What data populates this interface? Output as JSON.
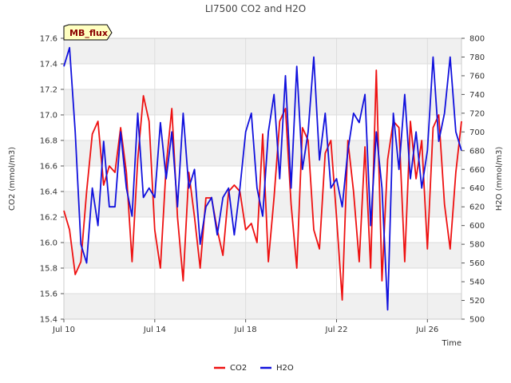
{
  "chart_data": {
    "type": "line",
    "title": "LI7500 CO2 and H2O",
    "xlabel": "Time",
    "ylabel_left": "CO2 (mmol/m3)",
    "ylabel_right": "H2O (mmol/m3)",
    "badge": "MB_flux",
    "x_range_days": [
      "Jul 10",
      "Jul 27 12:00"
    ],
    "x_ticks": [
      "Jul 10",
      "Jul 14",
      "Jul 18",
      "Jul 22",
      "Jul 26"
    ],
    "y_left_range": [
      15.4,
      17.6
    ],
    "y_left_ticks": [
      "15.4",
      "15.6",
      "15.8",
      "16.0",
      "16.2",
      "16.4",
      "16.6",
      "16.8",
      "17.0",
      "17.2",
      "17.4",
      "17.6"
    ],
    "y_right_range": [
      500,
      800
    ],
    "y_right_ticks": [
      "500",
      "520",
      "540",
      "560",
      "580",
      "600",
      "620",
      "640",
      "660",
      "680",
      "700",
      "720",
      "740",
      "760",
      "780",
      "800"
    ],
    "grid": true,
    "legend_position": "bottom-center",
    "series": [
      {
        "name": "CO2",
        "axis": "left",
        "color": "#ee1111",
        "points": [
          [
            "Jul 10 00:00",
            16.25
          ],
          [
            "Jul 10 06:00",
            16.1
          ],
          [
            "Jul 10 12:00",
            15.75
          ],
          [
            "Jul 10 18:00",
            15.85
          ],
          [
            "Jul 11 00:00",
            16.4
          ],
          [
            "Jul 11 06:00",
            16.85
          ],
          [
            "Jul 11 12:00",
            16.95
          ],
          [
            "Jul 11 18:00",
            16.45
          ],
          [
            "Jul 12 00:00",
            16.6
          ],
          [
            "Jul 12 06:00",
            16.55
          ],
          [
            "Jul 12 12:00",
            16.9
          ],
          [
            "Jul 12 18:00",
            16.55
          ],
          [
            "Jul 13 00:00",
            15.85
          ],
          [
            "Jul 13 06:00",
            16.65
          ],
          [
            "Jul 13 12:00",
            17.15
          ],
          [
            "Jul 13 18:00",
            16.95
          ],
          [
            "Jul 14 00:00",
            16.1
          ],
          [
            "Jul 14 06:00",
            15.8
          ],
          [
            "Jul 14 12:00",
            16.6
          ],
          [
            "Jul 14 18:00",
            17.05
          ],
          [
            "Jul 15 00:00",
            16.2
          ],
          [
            "Jul 15 06:00",
            15.7
          ],
          [
            "Jul 15 12:00",
            16.55
          ],
          [
            "Jul 15 18:00",
            16.2
          ],
          [
            "Jul 16 00:00",
            15.8
          ],
          [
            "Jul 16 06:00",
            16.35
          ],
          [
            "Jul 16 12:00",
            16.35
          ],
          [
            "Jul 16 18:00",
            16.1
          ],
          [
            "Jul 17 00:00",
            15.9
          ],
          [
            "Jul 17 06:00",
            16.4
          ],
          [
            "Jul 17 12:00",
            16.45
          ],
          [
            "Jul 17 18:00",
            16.4
          ],
          [
            "Jul 18 00:00",
            16.1
          ],
          [
            "Jul 18 06:00",
            16.15
          ],
          [
            "Jul 18 12:00",
            16.0
          ],
          [
            "Jul 18 18:00",
            16.85
          ],
          [
            "Jul 19 00:00",
            15.85
          ],
          [
            "Jul 19 06:00",
            16.35
          ],
          [
            "Jul 19 12:00",
            16.95
          ],
          [
            "Jul 19 18:00",
            17.05
          ],
          [
            "Jul 20 00:00",
            16.3
          ],
          [
            "Jul 20 06:00",
            15.8
          ],
          [
            "Jul 20 12:00",
            16.9
          ],
          [
            "Jul 20 18:00",
            16.8
          ],
          [
            "Jul 21 00:00",
            16.1
          ],
          [
            "Jul 21 06:00",
            15.95
          ],
          [
            "Jul 21 12:00",
            16.7
          ],
          [
            "Jul 21 18:00",
            16.8
          ],
          [
            "Jul 22 00:00",
            16.2
          ],
          [
            "Jul 22 06:00",
            15.55
          ],
          [
            "Jul 22 12:00",
            16.8
          ],
          [
            "Jul 22 18:00",
            16.4
          ],
          [
            "Jul 23 00:00",
            15.85
          ],
          [
            "Jul 23 06:00",
            16.75
          ],
          [
            "Jul 23 12:00",
            15.8
          ],
          [
            "Jul 23 18:00",
            17.35
          ],
          [
            "Jul 24 00:00",
            15.7
          ],
          [
            "Jul 24 06:00",
            16.65
          ],
          [
            "Jul 24 12:00",
            16.95
          ],
          [
            "Jul 24 18:00",
            16.9
          ],
          [
            "Jul 25 00:00",
            15.85
          ],
          [
            "Jul 25 06:00",
            16.95
          ],
          [
            "Jul 25 12:00",
            16.5
          ],
          [
            "Jul 25 18:00",
            16.8
          ],
          [
            "Jul 26 00:00",
            15.95
          ],
          [
            "Jul 26 06:00",
            16.9
          ],
          [
            "Jul 26 12:00",
            17.0
          ],
          [
            "Jul 26 18:00",
            16.3
          ],
          [
            "Jul 27 00:00",
            15.95
          ],
          [
            "Jul 27 06:00",
            16.55
          ],
          [
            "Jul 27 12:00",
            16.95
          ]
        ]
      },
      {
        "name": "H2O",
        "axis": "right",
        "color": "#1111dd",
        "points": [
          [
            "Jul 10 00:00",
            770
          ],
          [
            "Jul 10 06:00",
            790
          ],
          [
            "Jul 10 12:00",
            700
          ],
          [
            "Jul 10 18:00",
            580
          ],
          [
            "Jul 11 00:00",
            560
          ],
          [
            "Jul 11 06:00",
            640
          ],
          [
            "Jul 11 12:00",
            600
          ],
          [
            "Jul 11 18:00",
            690
          ],
          [
            "Jul 12 00:00",
            620
          ],
          [
            "Jul 12 06:00",
            620
          ],
          [
            "Jul 12 12:00",
            700
          ],
          [
            "Jul 12 18:00",
            640
          ],
          [
            "Jul 13 00:00",
            610
          ],
          [
            "Jul 13 06:00",
            720
          ],
          [
            "Jul 13 12:00",
            630
          ],
          [
            "Jul 13 18:00",
            640
          ],
          [
            "Jul 14 00:00",
            630
          ],
          [
            "Jul 14 06:00",
            710
          ],
          [
            "Jul 14 12:00",
            650
          ],
          [
            "Jul 14 18:00",
            700
          ],
          [
            "Jul 15 00:00",
            620
          ],
          [
            "Jul 15 06:00",
            720
          ],
          [
            "Jul 15 12:00",
            640
          ],
          [
            "Jul 15 18:00",
            660
          ],
          [
            "Jul 16 00:00",
            580
          ],
          [
            "Jul 16 06:00",
            620
          ],
          [
            "Jul 16 12:00",
            630
          ],
          [
            "Jul 16 18:00",
            590
          ],
          [
            "Jul 17 00:00",
            630
          ],
          [
            "Jul 17 06:00",
            640
          ],
          [
            "Jul 17 12:00",
            590
          ],
          [
            "Jul 17 18:00",
            640
          ],
          [
            "Jul 18 00:00",
            700
          ],
          [
            "Jul 18 06:00",
            720
          ],
          [
            "Jul 18 12:00",
            640
          ],
          [
            "Jul 18 18:00",
            610
          ],
          [
            "Jul 19 00:00",
            700
          ],
          [
            "Jul 19 06:00",
            740
          ],
          [
            "Jul 19 12:00",
            650
          ],
          [
            "Jul 19 18:00",
            760
          ],
          [
            "Jul 20 00:00",
            640
          ],
          [
            "Jul 20 06:00",
            770
          ],
          [
            "Jul 20 12:00",
            660
          ],
          [
            "Jul 20 18:00",
            700
          ],
          [
            "Jul 21 00:00",
            780
          ],
          [
            "Jul 21 06:00",
            670
          ],
          [
            "Jul 21 12:00",
            720
          ],
          [
            "Jul 21 18:00",
            640
          ],
          [
            "Jul 22 00:00",
            650
          ],
          [
            "Jul 22 06:00",
            620
          ],
          [
            "Jul 22 12:00",
            680
          ],
          [
            "Jul 22 18:00",
            720
          ],
          [
            "Jul 23 00:00",
            710
          ],
          [
            "Jul 23 06:00",
            740
          ],
          [
            "Jul 23 12:00",
            600
          ],
          [
            "Jul 23 18:00",
            700
          ],
          [
            "Jul 24 00:00",
            640
          ],
          [
            "Jul 24 06:00",
            510
          ],
          [
            "Jul 24 12:00",
            720
          ],
          [
            "Jul 24 18:00",
            660
          ],
          [
            "Jul 25 00:00",
            740
          ],
          [
            "Jul 25 06:00",
            650
          ],
          [
            "Jul 25 12:00",
            700
          ],
          [
            "Jul 25 18:00",
            640
          ],
          [
            "Jul 26 00:00",
            680
          ],
          [
            "Jul 26 06:00",
            780
          ],
          [
            "Jul 26 12:00",
            690
          ],
          [
            "Jul 26 18:00",
            720
          ],
          [
            "Jul 27 00:00",
            780
          ],
          [
            "Jul 27 06:00",
            700
          ],
          [
            "Jul 27 12:00",
            680
          ]
        ]
      }
    ]
  }
}
